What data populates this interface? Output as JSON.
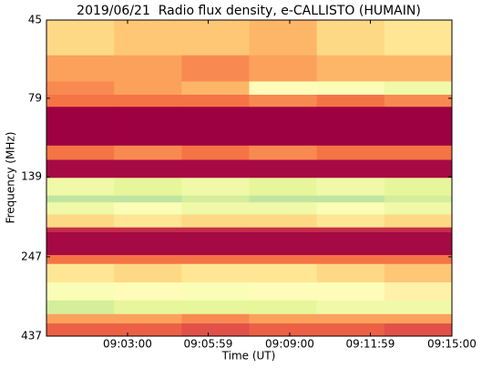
{
  "chart_data": {
    "type": "heatmap",
    "title": "2019/06/21  Radio flux density, e-CALLISTO (HUMAIN)",
    "x_label": "Time (UT)",
    "y_label": "Frequency (MHz)",
    "xlim": [
      "09:00:00",
      "09:15:00"
    ],
    "xticks": [
      "09:03:00",
      "09:05:59",
      "09:09:00",
      "09:11:59",
      "09:15:00"
    ],
    "ylim": [
      45,
      437
    ],
    "yticks": [
      45,
      79,
      139,
      247,
      437
    ],
    "log_y": true,
    "y_inverted": true,
    "zlim": [
      0,
      1
    ],
    "colormap": [
      "#9e0142",
      "#d53e4f",
      "#f46d43",
      "#fdae61",
      "#fee08b",
      "#ffffbf",
      "#e6f598",
      "#abdda4"
    ],
    "y_edges": [
      45,
      58,
      70,
      77,
      84,
      111,
      123,
      140,
      159,
      167,
      182,
      200,
      207,
      244,
      260,
      297,
      338,
      373,
      399,
      437
    ],
    "z": [
      [
        0.55,
        0.5,
        0.5,
        0.45,
        0.55,
        0.6
      ],
      [
        0.4,
        0.4,
        0.35,
        0.4,
        0.45,
        0.45
      ],
      [
        0.35,
        0.4,
        0.45,
        0.7,
        0.75,
        0.8
      ],
      [
        0.3,
        0.3,
        0.3,
        0.35,
        0.3,
        0.35
      ],
      [
        0,
        0,
        0,
        0,
        0,
        0
      ],
      [
        0.3,
        0.35,
        0.3,
        0.35,
        0.3,
        0.3
      ],
      [
        0.02,
        0.02,
        0.02,
        0.02,
        0.02,
        0.02
      ],
      [
        0.8,
        0.85,
        0.8,
        0.85,
        0.8,
        0.85
      ],
      [
        0.95,
        0.95,
        0.9,
        0.95,
        0.95,
        0.9
      ],
      [
        0.8,
        0.75,
        0.8,
        0.8,
        0.75,
        0.8
      ],
      [
        0.55,
        0.6,
        0.55,
        0.55,
        0.6,
        0.55
      ],
      [
        0.1,
        0.1,
        0.1,
        0.1,
        0.1,
        0.1
      ],
      [
        0.02,
        0.02,
        0.02,
        0.02,
        0.02,
        0.02
      ],
      [
        0.3,
        0.3,
        0.3,
        0.3,
        0.3,
        0.3
      ],
      [
        0.6,
        0.55,
        0.6,
        0.6,
        0.55,
        0.5
      ],
      [
        0.75,
        0.7,
        0.75,
        0.7,
        0.7,
        0.65
      ],
      [
        0.9,
        0.85,
        0.85,
        0.85,
        0.8,
        0.8
      ],
      [
        0.4,
        0.4,
        0.35,
        0.4,
        0.4,
        0.4
      ],
      [
        0.25,
        0.25,
        0.2,
        0.25,
        0.25,
        0.2
      ]
    ]
  }
}
